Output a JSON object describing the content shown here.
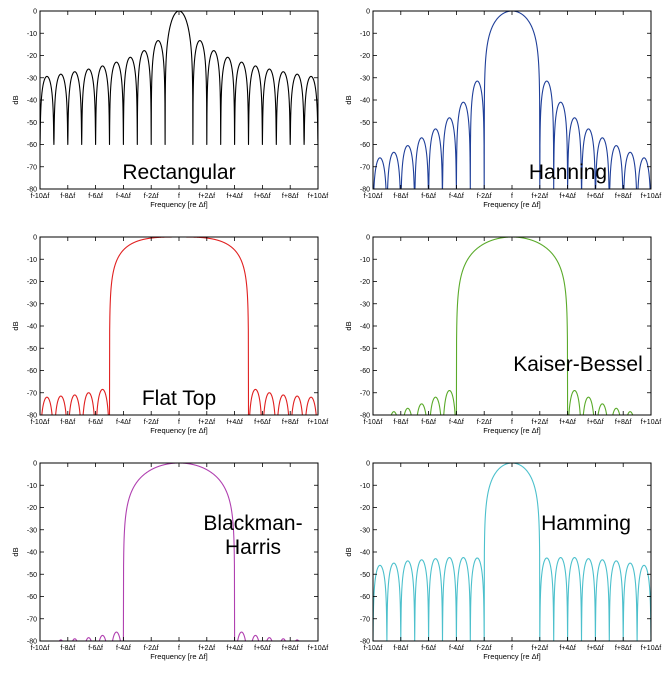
{
  "chart_data": [
    {
      "type": "line",
      "window": "Rectangular",
      "color": "#000000",
      "xlabel": "Frequency [re  Δf]",
      "ylabel": "dB",
      "x_ticks": [
        "f-10Δf",
        "f-8Δf",
        "f-6Δf",
        "f-4Δf",
        "f-2Δf",
        "f",
        "f+2Δf",
        "f+4Δf",
        "f+6Δf",
        "f+8Δf",
        "f+10Δf"
      ],
      "y_ticks": [
        "0",
        "-10",
        "-20",
        "-30",
        "-40",
        "-50",
        "-60",
        "-70",
        "-80"
      ],
      "xlim": [
        -10,
        10
      ],
      "ylim": [
        -80,
        0
      ],
      "main_lobe_halfwidth": 1,
      "main_lobe_shape": "sinc",
      "sidelobe_peaks_db": [
        -13.3,
        -17.8,
        -20.8,
        -23.0,
        -24.7,
        -26.1,
        -27.3,
        -28.4,
        -29.4
      ],
      "null_floor_db": -60,
      "label_pos": "bottom-center"
    },
    {
      "type": "line",
      "window": "Hanning",
      "color": "#1f3f99",
      "xlabel": "Frequency [re  Δf]",
      "ylabel": "dB",
      "x_ticks": [
        "f-10Δf",
        "f-8Δf",
        "f-6Δf",
        "f-4Δf",
        "f-2Δf",
        "f",
        "f+2Δf",
        "f+4Δf",
        "f+6Δf",
        "f+8Δf",
        "f+10Δf"
      ],
      "y_ticks": [
        "0",
        "-10",
        "-20",
        "-30",
        "-40",
        "-50",
        "-60",
        "-70",
        "-80"
      ],
      "xlim": [
        -10,
        10
      ],
      "ylim": [
        -80,
        0
      ],
      "main_lobe_halfwidth": 2,
      "main_lobe_shape": "cosine",
      "sidelobe_peaks_db": [
        -31.5,
        -41.0,
        -48.0,
        -53.0,
        -57.0,
        -60.5,
        -63.5,
        -66.0
      ],
      "null_floor_db": -80,
      "label_pos": "bottom-right"
    },
    {
      "type": "line",
      "window": "Flat Top",
      "color": "#e02020",
      "xlabel": "Frequency [re  Δf]",
      "ylabel": "dB",
      "x_ticks": [
        "f-10Δf",
        "f-8Δf",
        "f-6Δf",
        "f-4Δf",
        "f-2Δf",
        "f",
        "f+2Δf",
        "f+4Δf",
        "f+6Δf",
        "f+8Δf",
        "f+10Δf"
      ],
      "y_ticks": [
        "0",
        "-10",
        "-20",
        "-30",
        "-40",
        "-50",
        "-60",
        "-70",
        "-80"
      ],
      "xlim": [
        -10,
        10
      ],
      "ylim": [
        -80,
        0
      ],
      "main_lobe_halfwidth": 5,
      "main_lobe_shape": "flat",
      "sidelobe_peaks_db": [
        -68.5,
        -70.0,
        -71.0,
        -71.5,
        -72.0
      ],
      "null_floor_db": -80,
      "label_pos": "bottom-center"
    },
    {
      "type": "line",
      "window": "Kaiser-Bessel",
      "color": "#5aaa2a",
      "xlabel": "Frequency [re  Δf]",
      "ylabel": "dB",
      "x_ticks": [
        "f-10Δf",
        "f-8Δf",
        "f-6Δf",
        "f-4Δf",
        "f-2Δf",
        "f",
        "f+2Δf",
        "f+4Δf",
        "f+6Δf",
        "f+8Δf",
        "f+10Δf"
      ],
      "y_ticks": [
        "0",
        "-10",
        "-20",
        "-30",
        "-40",
        "-50",
        "-60",
        "-70",
        "-80"
      ],
      "xlim": [
        -10,
        10
      ],
      "ylim": [
        -80,
        0
      ],
      "main_lobe_halfwidth": 4,
      "main_lobe_shape": "cosine",
      "sidelobe_peaks_db": [
        -69.0,
        -72.0,
        -75.0,
        -77.0,
        -78.5
      ],
      "null_floor_db": -80,
      "sidelobe_xmax": 9,
      "label_pos": "middle-right"
    },
    {
      "type": "line",
      "window": "Blackman-\nHarris",
      "color": "#b040b0",
      "xlabel": "Frequency [re  Δf]",
      "ylabel": "dB",
      "x_ticks": [
        "f-10Δf",
        "f-8Δf",
        "f-6Δf",
        "f-4Δf",
        "f-2Δf",
        "f",
        "f+2Δf",
        "f+4Δf",
        "f+6Δf",
        "f+8Δf",
        "f+10Δf"
      ],
      "y_ticks": [
        "0",
        "-10",
        "-20",
        "-30",
        "-40",
        "-50",
        "-60",
        "-70",
        "-80"
      ],
      "xlim": [
        -10,
        10
      ],
      "ylim": [
        -80,
        0
      ],
      "main_lobe_halfwidth": 4,
      "main_lobe_shape": "cosine",
      "sidelobe_peaks_db": [
        -76.0,
        -77.5,
        -78.5,
        -79.0,
        -79.5
      ],
      "null_floor_db": -80,
      "sidelobe_xmax": 9,
      "label_pos": "top-right"
    },
    {
      "type": "line",
      "window": "Hamming",
      "color": "#4cc0cc",
      "xlabel": "Frequency [re  Δf]",
      "ylabel": "dB",
      "x_ticks": [
        "f-10Δf",
        "f-8Δf",
        "f-6Δf",
        "f-4Δf",
        "f-2Δf",
        "f",
        "f+2Δf",
        "f+4Δf",
        "f+6Δf",
        "f+8Δf",
        "f+10Δf"
      ],
      "y_ticks": [
        "0",
        "-10",
        "-20",
        "-30",
        "-40",
        "-50",
        "-60",
        "-70",
        "-80"
      ],
      "xlim": [
        -10,
        10
      ],
      "ylim": [
        -80,
        0
      ],
      "main_lobe_halfwidth": 2,
      "main_lobe_shape": "cosine",
      "sidelobe_peaks_db": [
        -42.7,
        -42.5,
        -42.5,
        -43.0,
        -43.5,
        -44.0,
        -45.0,
        -46.0
      ],
      "null_floor_db": -80,
      "label_pos": "top-right"
    }
  ]
}
